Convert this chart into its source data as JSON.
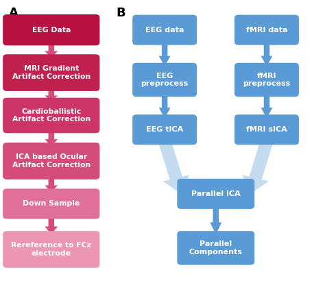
{
  "background_color": "#ffffff",
  "label_A": "A",
  "label_B": "B",
  "left_boxes": [
    {
      "text": "EEG Data",
      "color": "#B81040"
    },
    {
      "text": "MRI Gradient\nArtifact Correction",
      "color": "#C0204E"
    },
    {
      "text": "Cardioballistic\nArtifact Correction",
      "color": "#CC3366"
    },
    {
      "text": "ICA based Ocular\nArtifact Correction",
      "color": "#D44D7A"
    },
    {
      "text": "Down Sample",
      "color": "#E07098"
    },
    {
      "text": "Rereference to FCz\nelectrode",
      "color": "#EC96B4"
    }
  ],
  "blue_box": "#5B9BD5",
  "blue_arrow_straight": "#5B9BD5",
  "blue_arrow_diag": "#C5DCF0",
  "pink_arrow": "#D44D7A"
}
